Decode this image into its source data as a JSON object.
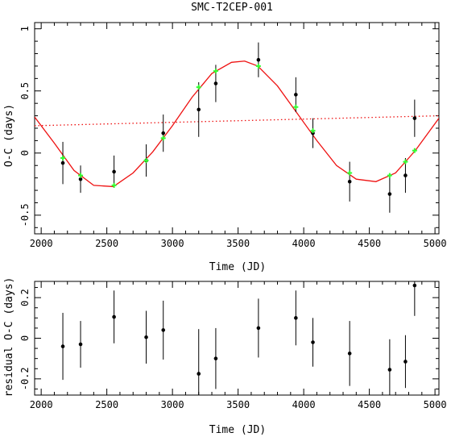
{
  "chart_data": [
    {
      "type": "scatter",
      "title": "SMC-T2CEP-001",
      "xlabel": "Time (JD)",
      "ylabel": "O-C (days)",
      "xlim": [
        1950,
        5030
      ],
      "ylim": [
        -0.65,
        1.05
      ],
      "xticks": [
        2000,
        2500,
        3000,
        3500,
        4000,
        4500,
        5000
      ],
      "xtick_labels": [
        "2000",
        "2500",
        "3000",
        "3500",
        "4000",
        "4500",
        "5000"
      ],
      "yticks": [
        -0.5,
        0,
        0.5,
        1
      ],
      "ytick_labels": [
        "-0.5",
        "0",
        "0.5",
        "1"
      ],
      "grid": false,
      "series": [
        {
          "kind": "observed",
          "color": "#000000",
          "x": [
            2165,
            2300,
            2555,
            2800,
            2930,
            3200,
            3330,
            3655,
            3940,
            4070,
            4350,
            4655,
            4775,
            4845
          ],
          "y": [
            -0.08,
            -0.21,
            -0.15,
            -0.06,
            0.16,
            0.35,
            0.56,
            0.75,
            0.47,
            0.16,
            -0.23,
            -0.33,
            -0.18,
            0.28
          ],
          "err": [
            0.17,
            0.11,
            0.13,
            0.13,
            0.15,
            0.22,
            0.15,
            0.14,
            0.14,
            0.12,
            0.16,
            0.15,
            0.14,
            0.15
          ]
        },
        {
          "kind": "model",
          "color": "#33ff33",
          "x": [
            2165,
            2300,
            2555,
            2800,
            2930,
            3200,
            3330,
            3655,
            3940,
            4070,
            4350,
            4655,
            4775,
            4845
          ],
          "y": [
            -0.04,
            -0.18,
            -0.26,
            -0.06,
            0.12,
            0.53,
            0.66,
            0.7,
            0.37,
            0.18,
            -0.16,
            -0.18,
            -0.07,
            0.02
          ]
        },
        {
          "kind": "sine-fit",
          "color": "#ee1111",
          "x": [
            1950,
            2100,
            2250,
            2400,
            2550,
            2700,
            2850,
            3000,
            3150,
            3300,
            3450,
            3550,
            3650,
            3800,
            3950,
            4100,
            4250,
            4400,
            4550,
            4700,
            4850,
            5030
          ],
          "y": [
            0.29,
            0.08,
            -0.14,
            -0.26,
            -0.27,
            -0.16,
            0.01,
            0.22,
            0.45,
            0.64,
            0.73,
            0.74,
            0.7,
            0.54,
            0.32,
            0.1,
            -0.1,
            -0.21,
            -0.23,
            -0.16,
            0.02,
            0.28
          ]
        },
        {
          "kind": "linear-trend",
          "color": "#ee1111",
          "x": [
            1950,
            5030
          ],
          "y": [
            0.22,
            0.3
          ]
        }
      ]
    },
    {
      "type": "scatter",
      "title": "",
      "xlabel": "Time (JD)",
      "ylabel": "residual O-C (days)",
      "xlim": [
        1950,
        5030
      ],
      "ylim": [
        -0.28,
        0.28
      ],
      "xticks": [
        2000,
        2500,
        3000,
        3500,
        4000,
        4500,
        5000
      ],
      "xtick_labels": [
        "2000",
        "2500",
        "3000",
        "3500",
        "4000",
        "4500",
        "5000"
      ],
      "yticks": [
        -0.2,
        0,
        0.2
      ],
      "ytick_labels": [
        "-0.2",
        "0",
        "0.2"
      ],
      "grid": false,
      "series": [
        {
          "kind": "residual",
          "color": "#000000",
          "x": [
            2165,
            2300,
            2555,
            2800,
            2930,
            3200,
            3330,
            3655,
            3940,
            4070,
            4350,
            4655,
            4775,
            4845
          ],
          "y": [
            -0.04,
            -0.03,
            0.105,
            0.005,
            0.04,
            -0.175,
            -0.1,
            0.05,
            0.1,
            -0.02,
            -0.075,
            -0.155,
            -0.115,
            0.26
          ],
          "err": [
            0.165,
            0.115,
            0.13,
            0.13,
            0.145,
            0.22,
            0.15,
            0.145,
            0.135,
            0.12,
            0.16,
            0.15,
            0.13,
            0.15
          ]
        }
      ]
    }
  ]
}
